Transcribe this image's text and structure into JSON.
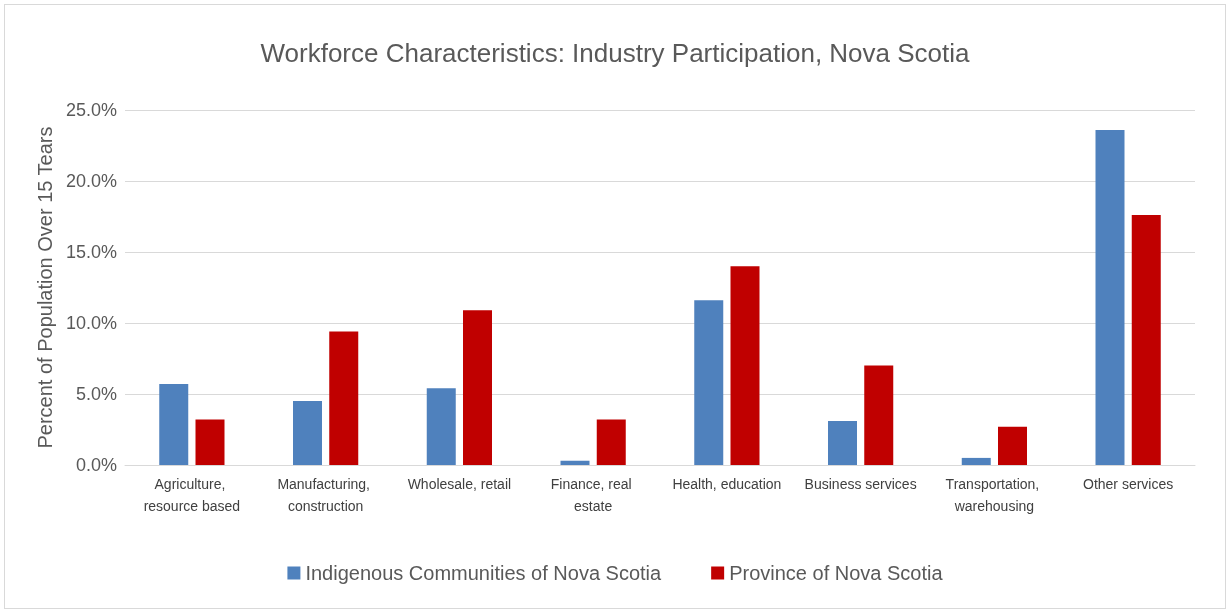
{
  "chart_data": {
    "type": "bar",
    "title": "Workforce Characteristics: Industry Participation, Nova Scotia",
    "ylabel": "Percent of Population Over 15 Tears",
    "categories": [
      "Agriculture, resource based",
      "Manufacturing, construction",
      "Wholesale, retail",
      "Finance, real estate",
      "Health, education",
      "Business services",
      "Transportation, warehousing",
      "Other services"
    ],
    "series": [
      {
        "name": "Indigenous Communities of Nova Scotia",
        "color": "#4f81bd",
        "values": [
          5.7,
          4.5,
          5.4,
          0.3,
          11.6,
          3.1,
          0.5,
          23.6
        ]
      },
      {
        "name": "Province of Nova Scotia",
        "color": "#c00000",
        "values": [
          3.2,
          9.4,
          10.9,
          3.2,
          14.0,
          7.0,
          2.7,
          17.6
        ]
      }
    ],
    "ylim": [
      0,
      25
    ],
    "yticks": [
      {
        "value": 0,
        "label": "0.0%"
      },
      {
        "value": 5,
        "label": "5.0%"
      },
      {
        "value": 10,
        "label": "10.0%"
      },
      {
        "value": 15,
        "label": "15.0%"
      },
      {
        "value": 20,
        "label": "20.0%"
      },
      {
        "value": 25,
        "label": "25.0%"
      }
    ],
    "grid": "y",
    "legend": "bottom"
  }
}
